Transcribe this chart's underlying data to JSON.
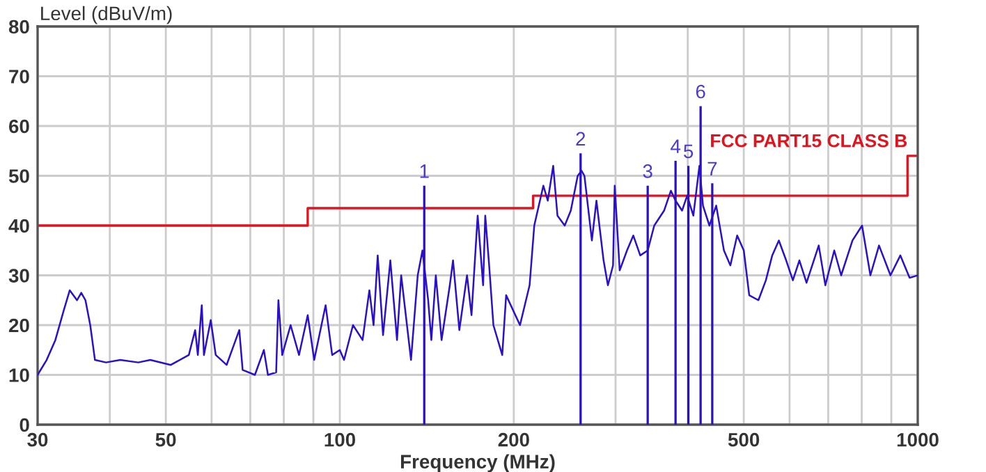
{
  "chart_data": {
    "type": "line",
    "ylabel": "Level (dBuV/m)",
    "xlabel": "Frequency (MHz)",
    "log": "x",
    "xlim": [
      30,
      1000
    ],
    "ylim": [
      0,
      80
    ],
    "xticks": [
      30,
      {
        "value": 40,
        "label": null
      },
      50,
      {
        "value": 60,
        "label": null
      },
      {
        "value": 70,
        "label": null
      },
      {
        "value": 80,
        "label": null
      },
      {
        "value": 90,
        "label": null
      },
      100,
      200,
      {
        "value": 300,
        "label": null
      },
      {
        "value": 400,
        "label": null
      },
      500,
      {
        "value": 600,
        "label": null
      },
      {
        "value": 700,
        "label": null
      },
      {
        "value": 800,
        "label": null
      },
      {
        "value": 900,
        "label": null
      },
      1000
    ],
    "yticks": [
      0,
      10,
      20,
      30,
      40,
      50,
      60,
      70,
      80
    ],
    "grid": true,
    "legend": false,
    "marker": "none",
    "line_style": "solid",
    "series": [
      {
        "color": "#2a10c8",
        "x": [
          30,
          31.1,
          32.2,
          33.3,
          34.1,
          35.1,
          35.7,
          36.3,
          37.0,
          37.7,
          39.4,
          41.7,
          44.8,
          47.0,
          51.0,
          54.8,
          56.2,
          56.8,
          57.7,
          58.2,
          59.8,
          61,
          63.7,
          67,
          67.9,
          71.3,
          73.9,
          75.1,
          77.6,
          78.3,
          79.5,
          82.2,
          85.0,
          88.0,
          90.3,
          94.5,
          97.0,
          100,
          101.7,
          105.4,
          109.5,
          112.5,
          114.4,
          116.3,
          118.8,
          122.3,
          125.6,
          127.7,
          132.8,
          136.4,
          139,
          142.2,
          144,
          146.6,
          150,
          155,
          157,
          161,
          166,
          169,
          173.2,
          177,
          178.5,
          181.3,
          184.4,
          191,
          194,
          205,
          213,
          217,
          225,
          229,
          234,
          238,
          245,
          251,
          258,
          262,
          265,
          273,
          278,
          286,
          291,
          297,
          299,
          305,
          314,
          322,
          331,
          341,
          350,
          364,
          374,
          381,
          391,
          399,
          409,
          419,
          425,
          436,
          448,
          462,
          474,
          487,
          500,
          511,
          530,
          546,
          560,
          575,
          592,
          608,
          624,
          642,
          674,
          692,
          717,
          737,
          771,
          801,
          828,
          857,
          897,
          933,
          968,
          1000
        ],
        "values": [
          10,
          13,
          17,
          23,
          27,
          25,
          26.5,
          25,
          20,
          13,
          12.5,
          13,
          12.5,
          13,
          12,
          14,
          19,
          14,
          24,
          14,
          21,
          14,
          12,
          19,
          11,
          10,
          15,
          10,
          10.5,
          25,
          14,
          20,
          14,
          22,
          13,
          24,
          14,
          15,
          13,
          20,
          17,
          27,
          20,
          34,
          18,
          33,
          17,
          30,
          13,
          30,
          35,
          25,
          17,
          30,
          17,
          28,
          33,
          19,
          30,
          22,
          42,
          28,
          42,
          32,
          20,
          14,
          26,
          20,
          28,
          40,
          48,
          45,
          52,
          42,
          40,
          43,
          50,
          51,
          50,
          37,
          45,
          33,
          28,
          32,
          48,
          31,
          35,
          38,
          34,
          35,
          40,
          43,
          47,
          45,
          43,
          46,
          42,
          52,
          44,
          40,
          44,
          35,
          32,
          38,
          35,
          26,
          25,
          29,
          34,
          37,
          33,
          29,
          33,
          28.5,
          36,
          28,
          35,
          30,
          37,
          40,
          30,
          36,
          30,
          34,
          29.5,
          30
        ]
      },
      {
        "type": "bar",
        "color": "#2a10c8",
        "x": [
          140,
          261,
          341,
          381,
          401,
          421,
          441
        ],
        "values": [
          48,
          54.5,
          48,
          53,
          52,
          64,
          48.5
        ]
      },
      {
        "type": "step",
        "name": "FCC PART15 CLASS B",
        "color": "#e0141e",
        "x": [
          30,
          88,
          216,
          960,
          1000
        ],
        "values": [
          40,
          43.5,
          46,
          54,
          54
        ]
      }
    ],
    "annotations": [
      {
        "text": "1",
        "x": 140,
        "y": 48
      },
      {
        "text": "2",
        "x": 261,
        "y": 54.5
      },
      {
        "text": "3",
        "x": 341,
        "y": 48
      },
      {
        "text": "4",
        "x": 381,
        "y": 53
      },
      {
        "text": "5",
        "x": 401,
        "y": 52
      },
      {
        "text": "6",
        "x": 421,
        "y": 64
      },
      {
        "text": "7",
        "x": 441,
        "y": 48.5
      }
    ]
  }
}
